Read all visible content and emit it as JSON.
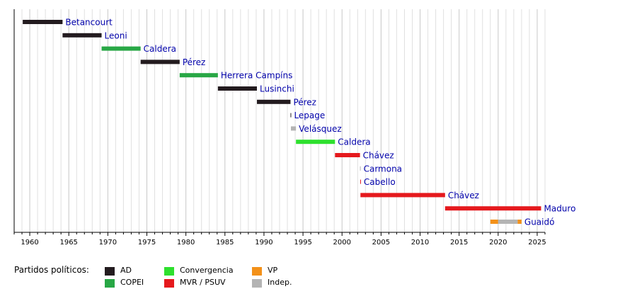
{
  "chart_data": {
    "type": "timeline",
    "xlim": [
      1958,
      2026
    ],
    "x_ticks": [
      1960,
      1965,
      1970,
      1975,
      1980,
      1985,
      1990,
      1995,
      2000,
      2005,
      2010,
      2015,
      2020,
      2025
    ],
    "grid": true,
    "bars": [
      {
        "label": "Betancourt",
        "start": 1959.1,
        "end": 1964.2,
        "party": "AD"
      },
      {
        "label": "Leoni",
        "start": 1964.2,
        "end": 1969.2,
        "party": "AD"
      },
      {
        "label": "Caldera",
        "start": 1969.2,
        "end": 1974.2,
        "party": "COPEI"
      },
      {
        "label": "Pérez",
        "start": 1974.2,
        "end": 1979.2,
        "party": "AD"
      },
      {
        "label": "Herrera Campíns",
        "start": 1979.2,
        "end": 1984.1,
        "party": "COPEI"
      },
      {
        "label": "Lusinchi",
        "start": 1984.1,
        "end": 1989.1,
        "party": "AD"
      },
      {
        "label": "Pérez",
        "start": 1989.1,
        "end": 1993.4,
        "party": "AD"
      },
      {
        "label": "Lepage",
        "start": 1993.4,
        "end": 1993.45,
        "party": "AD"
      },
      {
        "label": "Velásquez",
        "start": 1993.45,
        "end": 1994.1,
        "party": "Indep."
      },
      {
        "label": "Caldera",
        "start": 1994.1,
        "end": 1999.1,
        "party": "Convergencia"
      },
      {
        "label": "Chávez",
        "start": 1999.1,
        "end": 2002.3,
        "party": "MVR / PSUV"
      },
      {
        "label": "Carmona",
        "start": 2002.3,
        "end": 2002.33,
        "party": "Indep."
      },
      {
        "label": "Cabello",
        "start": 2002.33,
        "end": 2002.36,
        "party": "MVR / PSUV"
      },
      {
        "label": "Chávez",
        "start": 2002.36,
        "end": 2013.2,
        "party": "MVR / PSUV"
      },
      {
        "label": "Maduro",
        "start": 2013.2,
        "end": 2025.5,
        "party": "MVR / PSUV"
      },
      {
        "label": "Guaidó",
        "segments": [
          {
            "start": 2019.0,
            "end": 2020.0,
            "party": "VP"
          },
          {
            "start": 2020.0,
            "end": 2022.5,
            "party": "Indep."
          },
          {
            "start": 2022.5,
            "end": 2023.0,
            "party": "VP"
          }
        ]
      }
    ],
    "legend_title": "Partidos políticos:",
    "parties": [
      {
        "name": "AD",
        "color": "#231b1f"
      },
      {
        "name": "COPEI",
        "color": "#28a745"
      },
      {
        "name": "Convergencia",
        "color": "#2ee02e"
      },
      {
        "name": "MVR / PSUV",
        "color": "#e5191d"
      },
      {
        "name": "VP",
        "color": "#f39119"
      },
      {
        "name": "Indep.",
        "color": "#b4b4b4"
      }
    ],
    "label_color": "#0000aa"
  }
}
